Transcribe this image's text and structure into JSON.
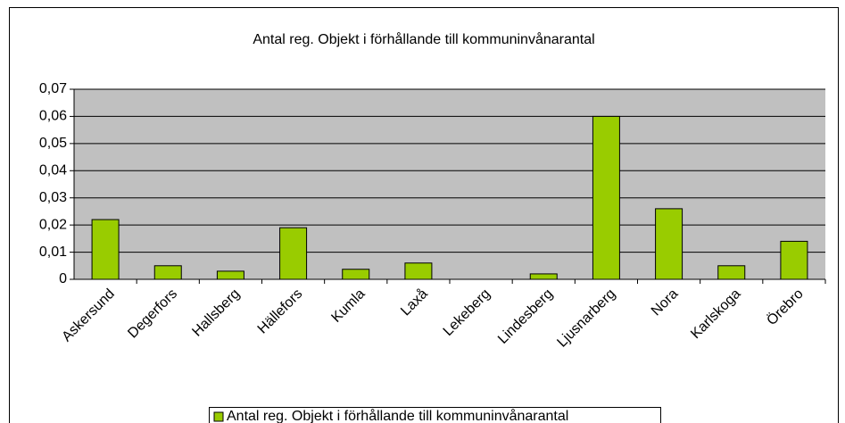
{
  "chart_data": {
    "type": "bar",
    "title": "Antal reg. Objekt i förhållande till kommuninvånarantal",
    "categories": [
      "Askersund",
      "Degerfors",
      "Hallsberg",
      "Hällefors",
      "Kumla",
      "Laxå",
      "Lekeberg",
      "Lindesberg",
      "Ljusnarberg",
      "Nora",
      "Karlskoga",
      "Örebro"
    ],
    "series": [
      {
        "name": "Antal reg. Objekt i förhållande till kommuninvånarantal",
        "color": "#99cc00",
        "values": [
          0.022,
          0.005,
          0.003,
          0.019,
          0.0037,
          0.006,
          0,
          0.002,
          0.06,
          0.026,
          0.005,
          0.014
        ]
      }
    ],
    "ylim": [
      0,
      0.07
    ],
    "yticks": [
      0,
      {
        "value": 0.01,
        "label": "0,01"
      },
      {
        "value": 0.02,
        "label": "0,02"
      },
      {
        "value": 0.03,
        "label": "0,03"
      },
      {
        "value": 0.04,
        "label": "0,04"
      },
      {
        "value": 0.05,
        "label": "0,05"
      },
      {
        "value": 0.06,
        "label": "0,06"
      },
      {
        "value": 0.07,
        "label": "0,07"
      }
    ],
    "grid": true,
    "legend": "bottom"
  }
}
